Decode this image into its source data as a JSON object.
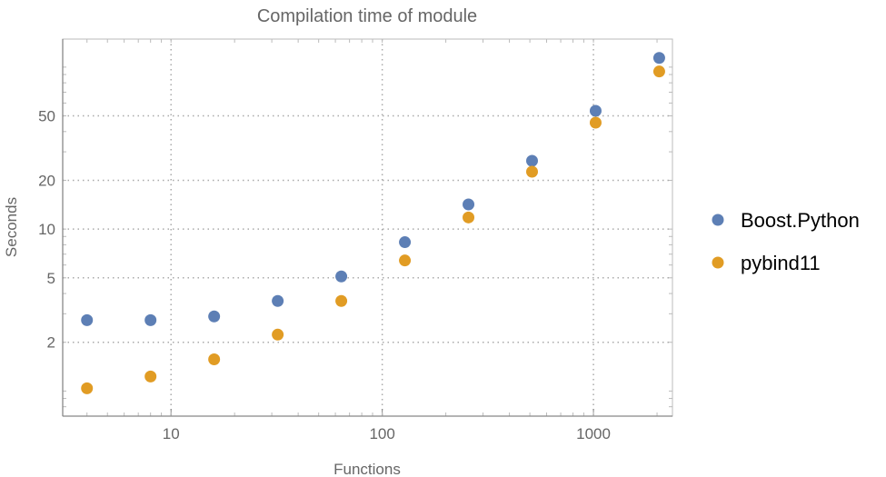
{
  "chart_data": {
    "type": "scatter",
    "title": "Compilation time of module",
    "xlabel": "Functions",
    "ylabel": "Seconds",
    "x_scale": "log",
    "y_scale": "log",
    "xlim": [
      3.07,
      2366
    ],
    "ylim": [
      0.7,
      149
    ],
    "grid": true,
    "legend_position": "right",
    "x_ticks": [
      10,
      100,
      1000
    ],
    "x_tick_labels": [
      "10",
      "100",
      "1000"
    ],
    "y_ticks": [
      2,
      5,
      10,
      20,
      50
    ],
    "y_tick_labels": [
      "2",
      "5",
      "10",
      "20",
      "50"
    ],
    "x": [
      4,
      8,
      16,
      32,
      64,
      128,
      256,
      512,
      1024,
      2048
    ],
    "series": [
      {
        "name": "Boost.Python",
        "color": "#5d7fb5",
        "values": [
          2.74,
          2.74,
          2.89,
          3.6,
          5.1,
          8.3,
          14.2,
          26.4,
          53.7,
          114
        ]
      },
      {
        "name": "pybind11",
        "color": "#e19c24",
        "values": [
          1.04,
          1.23,
          1.57,
          2.23,
          3.6,
          6.4,
          11.8,
          22.6,
          45.4,
          94
        ]
      }
    ]
  }
}
